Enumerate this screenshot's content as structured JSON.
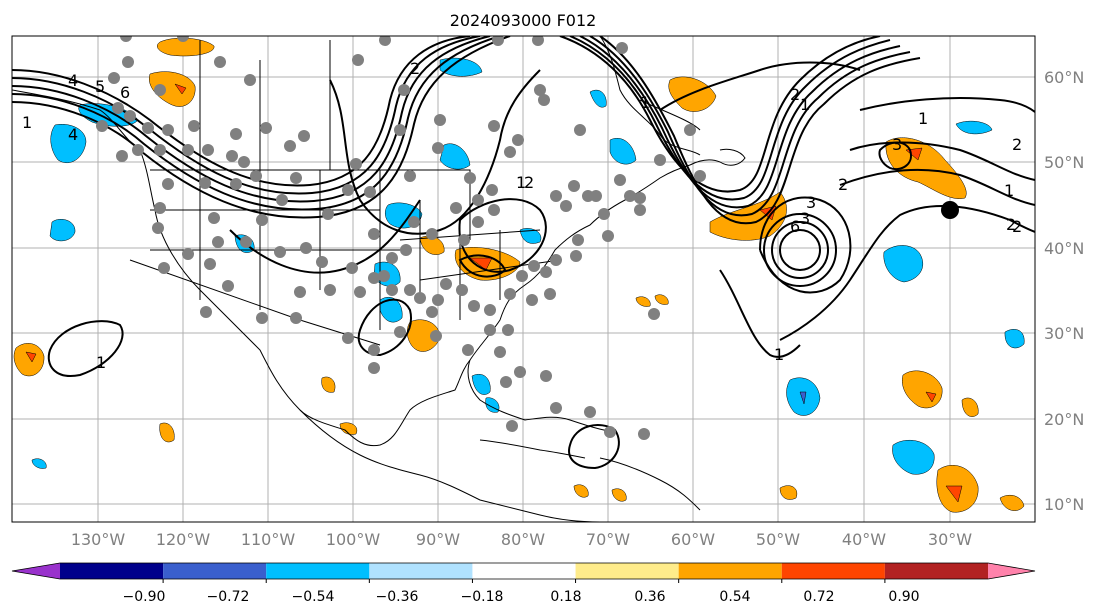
{
  "title": "2024093000 F012",
  "map": {
    "lon_range": [
      -140,
      -20
    ],
    "lat_range": [
      8,
      66
    ],
    "gridlines": true,
    "lon_labels": [
      "130°W",
      "120°W",
      "110°W",
      "100°W",
      "90°W",
      "80°W",
      "70°W",
      "60°W",
      "50°W",
      "40°W",
      "30°W"
    ],
    "lat_labels": [
      "60°N",
      "50°N",
      "40°N",
      "30°N",
      "20°N",
      "10°N"
    ],
    "contour_labels": [
      "4",
      "5",
      "6",
      "1",
      "4",
      "2",
      "1",
      "2",
      "1",
      "2",
      "3",
      "2",
      "1",
      "2",
      "1",
      "2",
      "3",
      "6",
      "3",
      "1",
      "1",
      "2",
      "1"
    ],
    "marker_color": "#000000",
    "station_color": "#808080"
  },
  "colorbar": {
    "ticks": [
      "−0.90",
      "−0.72",
      "−0.54",
      "−0.36",
      "−0.18",
      "0.18",
      "0.36",
      "0.54",
      "0.72",
      "0.90"
    ],
    "colors": [
      "#9932cc",
      "#00008b",
      "#3a5fcd",
      "#00bfff",
      "#b0e2ff",
      "#ffffff",
      "#ffec8b",
      "#ffa500",
      "#ff4500",
      "#b22222",
      "#ff82ab"
    ]
  }
}
